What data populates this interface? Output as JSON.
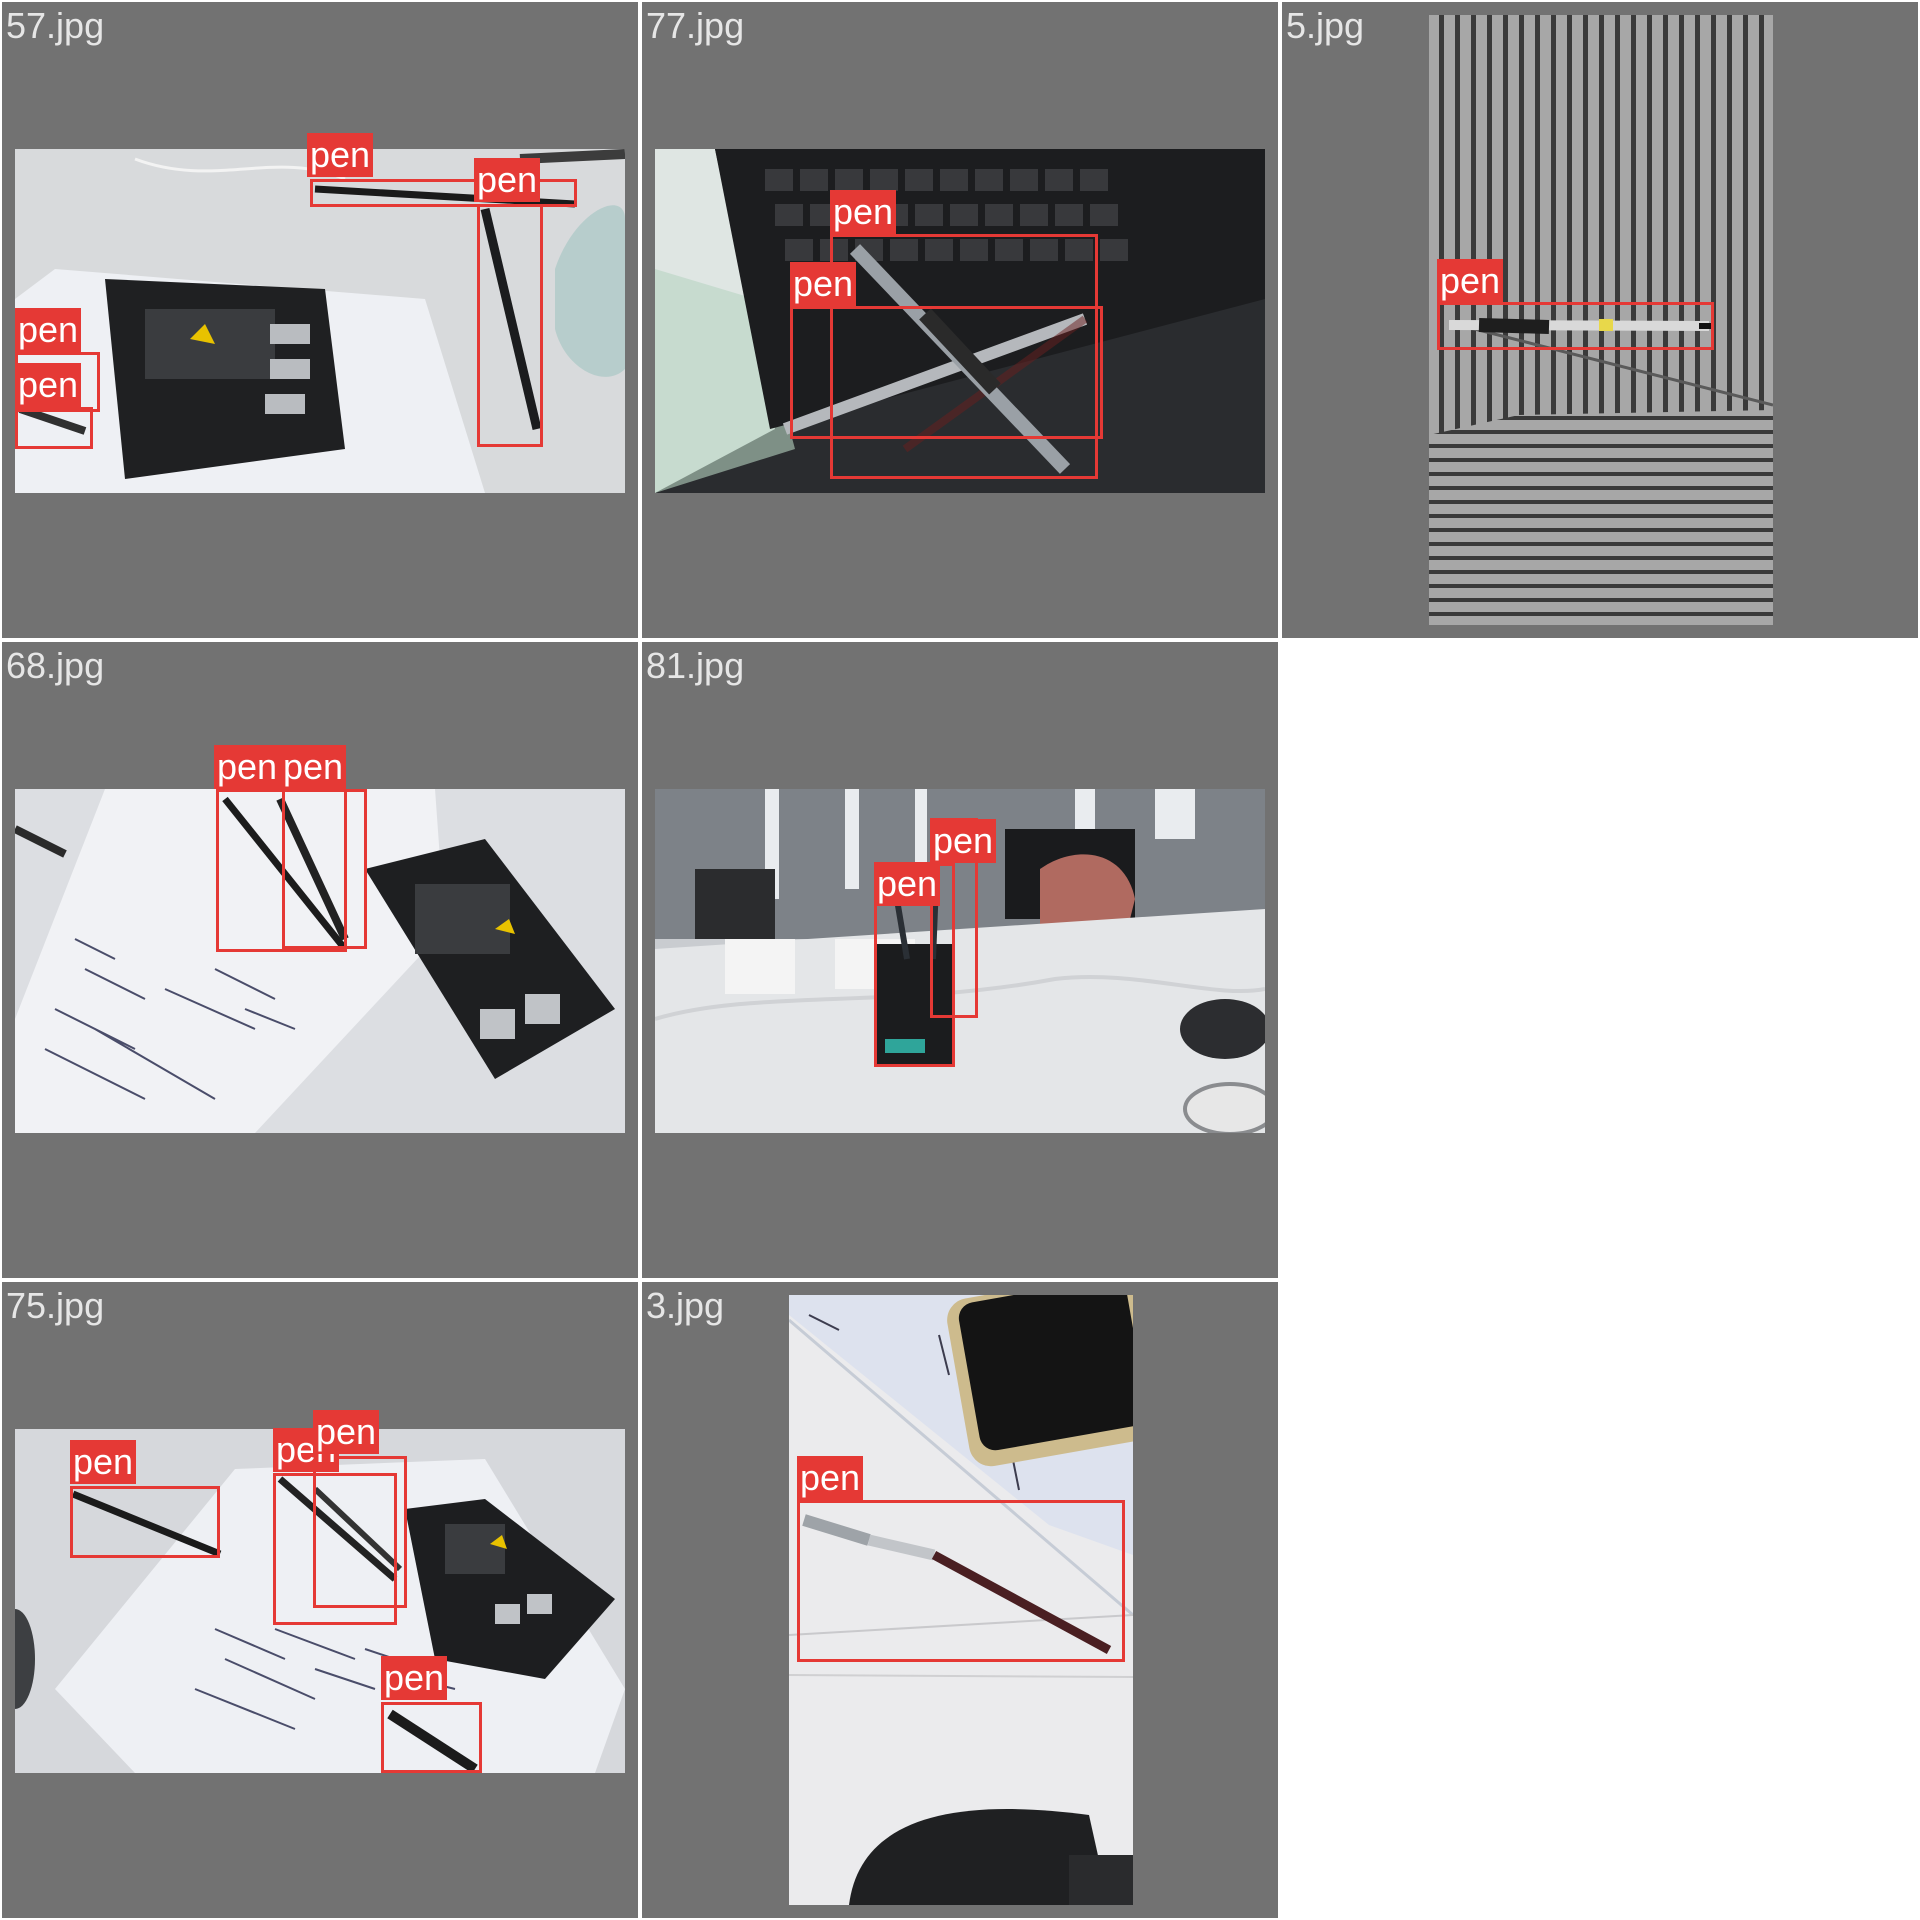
{
  "grid_tiles": [
    {
      "title": "57.jpg",
      "label": "pen"
    },
    {
      "title": "77.jpg",
      "label": "pen"
    },
    {
      "title": "5.jpg",
      "label": "pen"
    },
    {
      "title": "68.jpg",
      "label": "pen"
    },
    {
      "title": "81.jpg",
      "label": "pen"
    },
    {
      "title": "75.jpg",
      "label": "pen"
    },
    {
      "title": "3.jpg",
      "label": "pen"
    }
  ],
  "colors": {
    "tile_background": "#727272",
    "box_color": "#e53935",
    "page_background": "#ffffff"
  }
}
